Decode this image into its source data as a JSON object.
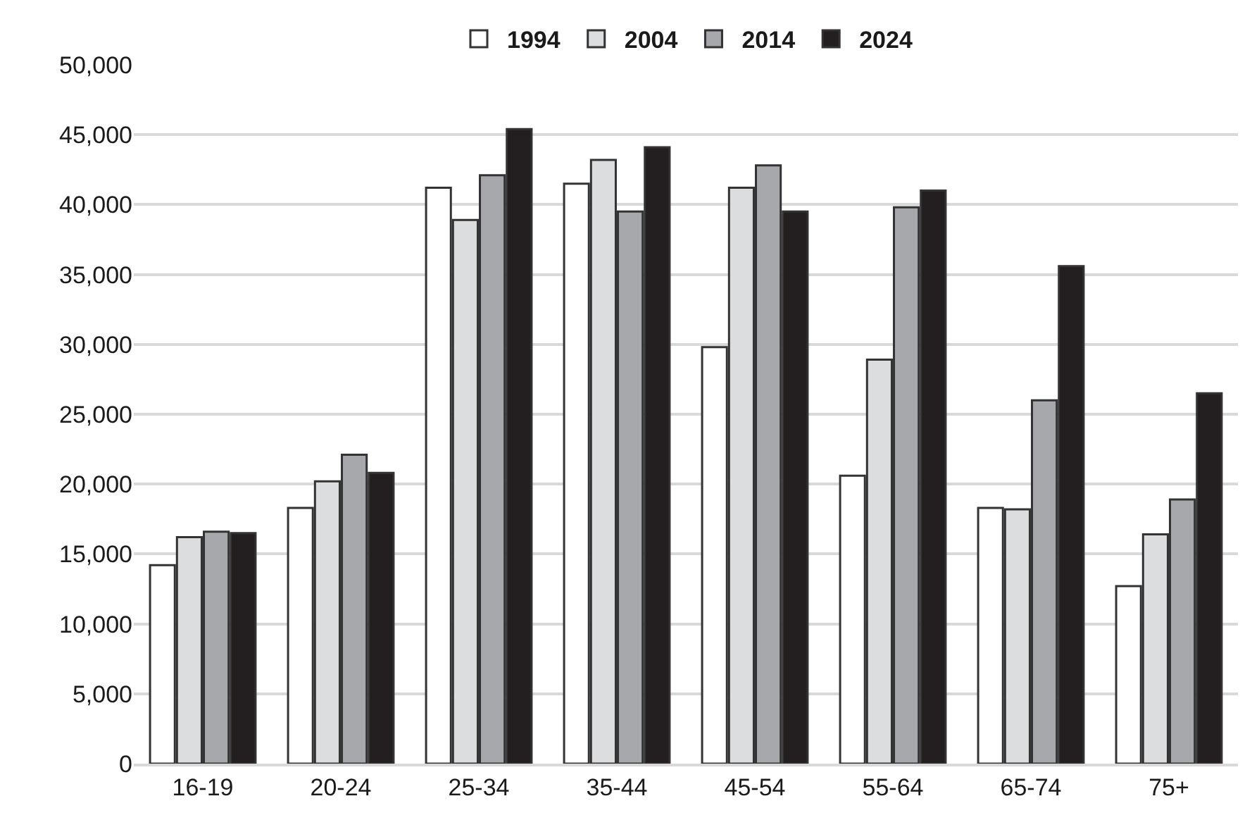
{
  "chart_data": {
    "type": "bar",
    "categories": [
      "16-19",
      "20-24",
      "25-34",
      "35-44",
      "45-54",
      "55-64",
      "65-74",
      "75+"
    ],
    "series": [
      {
        "name": "1994",
        "color": "#ffffff",
        "values": [
          14200,
          18300,
          41200,
          41500,
          29800,
          20600,
          18300,
          12700
        ]
      },
      {
        "name": "2004",
        "color": "#dcdddf",
        "values": [
          16200,
          20200,
          38900,
          43200,
          41200,
          28900,
          18200,
          16400
        ]
      },
      {
        "name": "2014",
        "color": "#a7a8ab",
        "values": [
          16600,
          22100,
          42100,
          39500,
          42800,
          39800,
          26000,
          18900
        ]
      },
      {
        "name": "2024",
        "color": "#231f20",
        "values": [
          16500,
          20800,
          45400,
          44100,
          39500,
          41000,
          35600,
          26500
        ]
      }
    ],
    "ylim": [
      0,
      50000
    ],
    "yticks": [
      {
        "value": 0,
        "label": "0"
      },
      {
        "value": 5000,
        "label": "5,000"
      },
      {
        "value": 10000,
        "label": "10,000"
      },
      {
        "value": 15000,
        "label": "15,000"
      },
      {
        "value": 20000,
        "label": "20,000"
      },
      {
        "value": 25000,
        "label": "25,000"
      },
      {
        "value": 30000,
        "label": "30,000"
      },
      {
        "value": 35000,
        "label": "35,000"
      },
      {
        "value": 40000,
        "label": "40,000"
      },
      {
        "value": 45000,
        "label": "45,000"
      },
      {
        "value": 50000,
        "label": "50,000"
      }
    ],
    "grid": "y",
    "legend": "top"
  }
}
